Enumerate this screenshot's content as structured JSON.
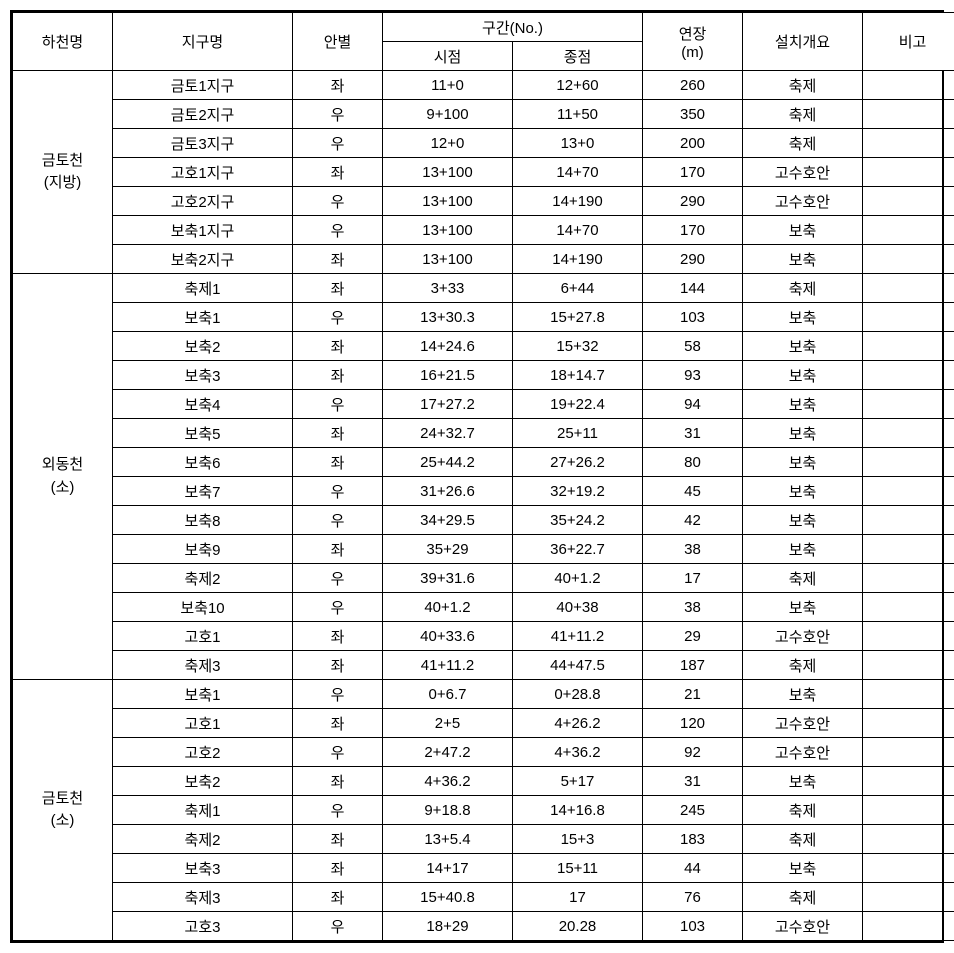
{
  "headers": {
    "river": "하천명",
    "district": "지구명",
    "side": "안별",
    "section": "구간(No.)",
    "startPoint": "시점",
    "endPoint": "종점",
    "length": "연장\n(m)",
    "length_line1": "연장",
    "length_line2": "(m)",
    "install": "설치개요",
    "note": "비고"
  },
  "groups": [
    {
      "river_line1": "금토천",
      "river_line2": "(지방)",
      "rows": [
        {
          "district": "금토1지구",
          "side": "좌",
          "start": "11+0",
          "end": "12+60",
          "length": "260",
          "install": "축제",
          "note": ""
        },
        {
          "district": "금토2지구",
          "side": "우",
          "start": "9+100",
          "end": "11+50",
          "length": "350",
          "install": "축제",
          "note": ""
        },
        {
          "district": "금토3지구",
          "side": "우",
          "start": "12+0",
          "end": "13+0",
          "length": "200",
          "install": "축제",
          "note": ""
        },
        {
          "district": "고호1지구",
          "side": "좌",
          "start": "13+100",
          "end": "14+70",
          "length": "170",
          "install": "고수호안",
          "note": ""
        },
        {
          "district": "고호2지구",
          "side": "우",
          "start": "13+100",
          "end": "14+190",
          "length": "290",
          "install": "고수호안",
          "note": ""
        },
        {
          "district": "보축1지구",
          "side": "우",
          "start": "13+100",
          "end": "14+70",
          "length": "170",
          "install": "보축",
          "note": ""
        },
        {
          "district": "보축2지구",
          "side": "좌",
          "start": "13+100",
          "end": "14+190",
          "length": "290",
          "install": "보축",
          "note": ""
        }
      ]
    },
    {
      "river_line1": "외동천",
      "river_line2": "(소)",
      "rows": [
        {
          "district": "축제1",
          "side": "좌",
          "start": "3+33",
          "end": "6+44",
          "length": "144",
          "install": "축제",
          "note": ""
        },
        {
          "district": "보축1",
          "side": "우",
          "start": "13+30.3",
          "end": "15+27.8",
          "length": "103",
          "install": "보축",
          "note": ""
        },
        {
          "district": "보축2",
          "side": "좌",
          "start": "14+24.6",
          "end": "15+32",
          "length": "58",
          "install": "보축",
          "note": ""
        },
        {
          "district": "보축3",
          "side": "좌",
          "start": "16+21.5",
          "end": "18+14.7",
          "length": "93",
          "install": "보축",
          "note": ""
        },
        {
          "district": "보축4",
          "side": "우",
          "start": "17+27.2",
          "end": "19+22.4",
          "length": "94",
          "install": "보축",
          "note": ""
        },
        {
          "district": "보축5",
          "side": "좌",
          "start": "24+32.7",
          "end": "25+11",
          "length": "31",
          "install": "보축",
          "note": ""
        },
        {
          "district": "보축6",
          "side": "좌",
          "start": "25+44.2",
          "end": "27+26.2",
          "length": "80",
          "install": "보축",
          "note": ""
        },
        {
          "district": "보축7",
          "side": "우",
          "start": "31+26.6",
          "end": "32+19.2",
          "length": "45",
          "install": "보축",
          "note": ""
        },
        {
          "district": "보축8",
          "side": "우",
          "start": "34+29.5",
          "end": "35+24.2",
          "length": "42",
          "install": "보축",
          "note": ""
        },
        {
          "district": "보축9",
          "side": "좌",
          "start": "35+29",
          "end": "36+22.7",
          "length": "38",
          "install": "보축",
          "note": ""
        },
        {
          "district": "축제2",
          "side": "우",
          "start": "39+31.6",
          "end": "40+1.2",
          "length": "17",
          "install": "축제",
          "note": ""
        },
        {
          "district": "보축10",
          "side": "우",
          "start": "40+1.2",
          "end": "40+38",
          "length": "38",
          "install": "보축",
          "note": ""
        },
        {
          "district": "고호1",
          "side": "좌",
          "start": "40+33.6",
          "end": "41+11.2",
          "length": "29",
          "install": "고수호안",
          "note": ""
        },
        {
          "district": "축제3",
          "side": "좌",
          "start": "41+11.2",
          "end": "44+47.5",
          "length": "187",
          "install": "축제",
          "note": ""
        }
      ]
    },
    {
      "river_line1": "금토천",
      "river_line2": "(소)",
      "rows": [
        {
          "district": "보축1",
          "side": "우",
          "start": "0+6.7",
          "end": "0+28.8",
          "length": "21",
          "install": "보축",
          "note": ""
        },
        {
          "district": "고호1",
          "side": "좌",
          "start": "2+5",
          "end": "4+26.2",
          "length": "120",
          "install": "고수호안",
          "note": ""
        },
        {
          "district": "고호2",
          "side": "우",
          "start": "2+47.2",
          "end": "4+36.2",
          "length": "92",
          "install": "고수호안",
          "note": ""
        },
        {
          "district": "보축2",
          "side": "좌",
          "start": "4+36.2",
          "end": "5+17",
          "length": "31",
          "install": "보축",
          "note": ""
        },
        {
          "district": "축제1",
          "side": "우",
          "start": "9+18.8",
          "end": "14+16.8",
          "length": "245",
          "install": "축제",
          "note": ""
        },
        {
          "district": "축제2",
          "side": "좌",
          "start": "13+5.4",
          "end": "15+3",
          "length": "183",
          "install": "축제",
          "note": ""
        },
        {
          "district": "보축3",
          "side": "좌",
          "start": "14+17",
          "end": "15+11",
          "length": "44",
          "install": "보축",
          "note": ""
        },
        {
          "district": "축제3",
          "side": "좌",
          "start": "15+40.8",
          "end": "17",
          "length": "76",
          "install": "축제",
          "note": ""
        },
        {
          "district": "고호3",
          "side": "우",
          "start": "18+29",
          "end": "20.28",
          "length": "103",
          "install": "고수호안",
          "note": ""
        }
      ]
    }
  ],
  "styles": {
    "borderColor": "#000000",
    "backgroundColor": "#ffffff",
    "fontSize": 15,
    "fontFamily": "Malgun Gothic"
  }
}
